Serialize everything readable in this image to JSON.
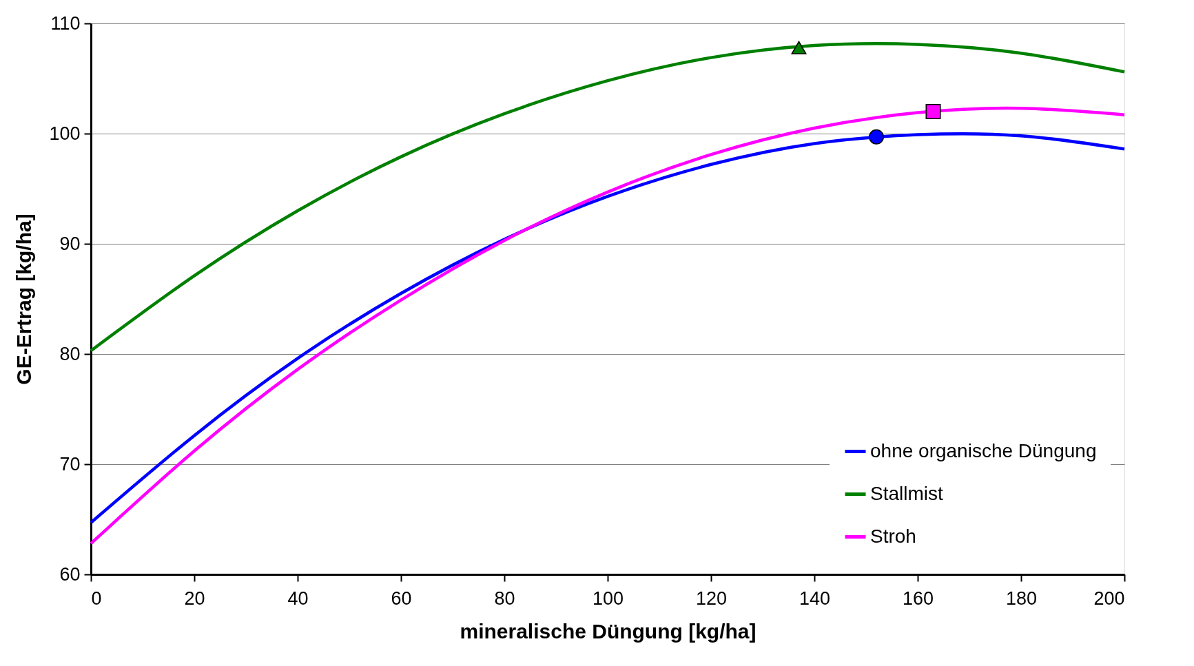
{
  "chart_data": {
    "type": "line",
    "xlabel": "mineralische Düngung [kg/ha]",
    "ylabel": "GE-Ertrag [kg/ha]",
    "x": [
      0,
      20,
      40,
      60,
      80,
      100,
      120,
      140,
      160,
      180,
      200
    ],
    "series": [
      {
        "name": "ohne organische Düngung",
        "color": "#0000ff",
        "values": [
          64.7,
          72.6,
          79.6,
          85.5,
          90.4,
          94.3,
          97.2,
          99.1,
          99.9,
          99.8,
          98.6
        ]
      },
      {
        "name": "Stallmist",
        "color": "#008000",
        "values": [
          80.3,
          87.1,
          93.0,
          97.9,
          101.8,
          104.8,
          106.9,
          108.0,
          108.1,
          107.3,
          105.6
        ]
      },
      {
        "name": "Stroh",
        "color": "#ff00ff",
        "values": [
          62.8,
          71.2,
          78.6,
          84.9,
          90.3,
          94.7,
          98.1,
          100.5,
          101.9,
          102.3,
          101.7
        ]
      },
      {
        "type": "scatter",
        "marker": "circle",
        "color": "#0000ff",
        "x": [
          152
        ],
        "values": [
          99.7
        ]
      },
      {
        "type": "scatter",
        "marker": "triangle",
        "color": "#008000",
        "x": [
          137
        ],
        "values": [
          107.8
        ]
      },
      {
        "type": "scatter",
        "marker": "square",
        "color": "#ff00ff",
        "x": [
          163
        ],
        "values": [
          102.0
        ]
      }
    ],
    "xlim": [
      0,
      200
    ],
    "xticks": [
      0,
      20,
      40,
      60,
      80,
      100,
      120,
      140,
      160,
      180,
      200
    ],
    "ylim": [
      60,
      110
    ],
    "yticks": [
      60,
      70,
      80,
      90,
      100,
      110
    ],
    "grid": "y",
    "legend": "bottom right",
    "marker": "none",
    "line_style": "solid"
  }
}
